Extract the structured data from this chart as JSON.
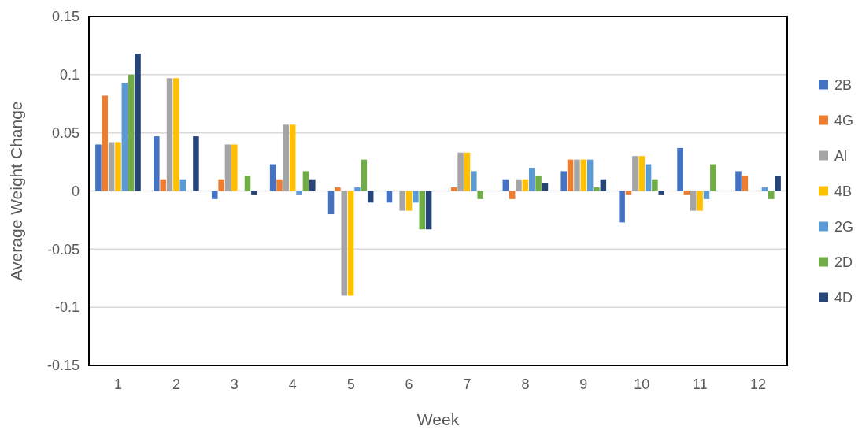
{
  "chart_data": {
    "type": "bar",
    "xlabel": "Week",
    "ylabel": "Average Weight Change",
    "x": [
      1,
      2,
      3,
      4,
      5,
      6,
      7,
      8,
      9,
      10,
      11,
      12
    ],
    "xlim": [
      0.5,
      12.5
    ],
    "xticks": [
      1,
      2,
      3,
      4,
      5,
      6,
      7,
      8,
      9,
      10,
      11,
      12
    ],
    "series": [
      {
        "name": "2B",
        "color": "#4472c4",
        "values": [
          0.04,
          0.047,
          -0.007,
          0.023,
          -0.02,
          -0.01,
          0,
          0.01,
          0.017,
          -0.027,
          0.037,
          0.017
        ]
      },
      {
        "name": "4G",
        "color": "#ed7d31",
        "values": [
          0.082,
          0.01,
          0.01,
          0.01,
          0.003,
          0,
          0.003,
          -0.007,
          0.027,
          -0.003,
          -0.003,
          0.013
        ]
      },
      {
        "name": "Al",
        "color": "#a5a5a5",
        "values": [
          0.042,
          0.097,
          0.04,
          0.057,
          -0.09,
          -0.017,
          0.033,
          0.01,
          0.027,
          0.03,
          -0.017,
          0
        ]
      },
      {
        "name": "4B",
        "color": "#ffc000",
        "values": [
          0.042,
          0.097,
          0.04,
          0.057,
          -0.09,
          -0.017,
          0.033,
          0.01,
          0.027,
          0.03,
          -0.017,
          0
        ]
      },
      {
        "name": "2G",
        "color": "#5b9bd5",
        "values": [
          0.093,
          0.01,
          0,
          -0.003,
          0.003,
          -0.01,
          0.017,
          0.02,
          0.027,
          0.023,
          -0.007,
          0.003
        ]
      },
      {
        "name": "2D",
        "color": "#70ad47",
        "values": [
          0.1,
          0,
          0.013,
          0.017,
          0.027,
          -0.033,
          -0.007,
          0.013,
          0.003,
          0.01,
          0.023,
          -0.007
        ]
      },
      {
        "name": "4D",
        "color": "#264478",
        "values": [
          0.118,
          0.047,
          -0.003,
          0.01,
          -0.01,
          -0.033,
          0,
          0.007,
          0.01,
          -0.003,
          0,
          0.013
        ]
      }
    ],
    "ylim": [
      -0.15,
      0.15
    ],
    "yticks": [
      -0.15,
      -0.1,
      -0.05,
      0,
      0.05,
      0.1,
      0.15
    ],
    "grid": "y",
    "legend": "right"
  }
}
